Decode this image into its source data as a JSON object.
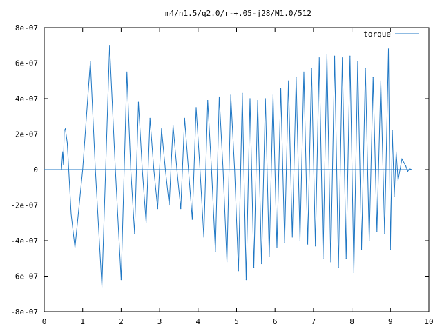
{
  "chart_data": {
    "type": "line",
    "title": "m4/n1.5/q2.0/r-+.05-j28/M1.0/512",
    "xlabel": "",
    "ylabel": "",
    "xlim": [
      0,
      10
    ],
    "ylim": [
      -8e-07,
      8e-07
    ],
    "grid": false,
    "legend_position": "top-right",
    "x_ticks": [
      {
        "value": 0,
        "label": "0"
      },
      {
        "value": 1,
        "label": "1"
      },
      {
        "value": 2,
        "label": "2"
      },
      {
        "value": 3,
        "label": "3"
      },
      {
        "value": 4,
        "label": "4"
      },
      {
        "value": 5,
        "label": "5"
      },
      {
        "value": 6,
        "label": "6"
      },
      {
        "value": 7,
        "label": "7"
      },
      {
        "value": 8,
        "label": "8"
      },
      {
        "value": 9,
        "label": "9"
      },
      {
        "value": 10,
        "label": "10"
      }
    ],
    "y_ticks": [
      {
        "value": 8e-07,
        "label": "8e-07"
      },
      {
        "value": 6e-07,
        "label": "6e-07"
      },
      {
        "value": 4e-07,
        "label": "4e-07"
      },
      {
        "value": 2e-07,
        "label": "2e-07"
      },
      {
        "value": 0,
        "label": "0"
      },
      {
        "value": -2e-07,
        "label": "-2e-07"
      },
      {
        "value": -4e-07,
        "label": "-4e-07"
      },
      {
        "value": -6e-07,
        "label": "-6e-07"
      },
      {
        "value": -8e-07,
        "label": "-8e-07"
      }
    ],
    "series": [
      {
        "name": "torque",
        "color": "#1f77c4",
        "x": [
          0.0,
          0.45,
          0.48,
          0.5,
          0.52,
          0.55,
          0.6,
          0.7,
          0.8,
          1.0,
          1.2,
          1.33,
          1.5,
          1.7,
          1.85,
          2.0,
          2.15,
          2.25,
          2.35,
          2.45,
          2.55,
          2.65,
          2.75,
          2.85,
          2.95,
          3.05,
          3.15,
          3.25,
          3.35,
          3.45,
          3.55,
          3.65,
          3.75,
          3.85,
          3.95,
          4.05,
          4.15,
          4.25,
          4.35,
          4.45,
          4.55,
          4.65,
          4.75,
          4.85,
          4.95,
          5.05,
          5.15,
          5.25,
          5.35,
          5.45,
          5.55,
          5.65,
          5.75,
          5.85,
          5.95,
          6.05,
          6.15,
          6.25,
          6.35,
          6.45,
          6.55,
          6.65,
          6.75,
          6.85,
          6.95,
          7.05,
          7.15,
          7.25,
          7.35,
          7.45,
          7.55,
          7.65,
          7.75,
          7.85,
          7.95,
          8.05,
          8.15,
          8.25,
          8.35,
          8.45,
          8.55,
          8.65,
          8.75,
          8.85,
          8.95,
          9.0,
          9.05,
          9.1,
          9.15,
          9.2,
          9.3,
          9.4,
          9.45,
          9.5,
          9.55
        ],
        "y": [
          0,
          0,
          1e-07,
          3e-08,
          2.2e-07,
          2.3e-07,
          1.5e-07,
          -2.5e-07,
          -4.4e-07,
          0,
          6.1e-07,
          0,
          -6.6e-07,
          7e-07,
          0,
          -6.2e-07,
          5.5e-07,
          0,
          -3.6e-07,
          3.8e-07,
          0,
          -3e-07,
          2.9e-07,
          0,
          -2.2e-07,
          2.3e-07,
          0,
          -2e-07,
          2.5e-07,
          0,
          -2.2e-07,
          2.9e-07,
          0,
          -2.8e-07,
          3.5e-07,
          0,
          -3.8e-07,
          3.9e-07,
          0,
          -4.6e-07,
          4.1e-07,
          0,
          -5.2e-07,
          4.2e-07,
          0,
          -5.7e-07,
          4.3e-07,
          -6.2e-07,
          4e-07,
          -5.5e-07,
          3.9e-07,
          -5.3e-07,
          4e-07,
          -4.9e-07,
          4.2e-07,
          -4.4e-07,
          4.6e-07,
          -4.1e-07,
          5e-07,
          -3.8e-07,
          5.2e-07,
          -4e-07,
          5.5e-07,
          -4.2e-07,
          5.7e-07,
          -4.3e-07,
          6.3e-07,
          -5e-07,
          6.5e-07,
          -5.2e-07,
          6.4e-07,
          -5.5e-07,
          6.3e-07,
          -5e-07,
          6.4e-07,
          -5.8e-07,
          6.1e-07,
          -4.5e-07,
          5.7e-07,
          -4e-07,
          5.2e-07,
          -3.5e-07,
          5e-07,
          -3.6e-07,
          6.8e-07,
          -4.5e-07,
          2.2e-07,
          -1.5e-07,
          1e-07,
          -6e-08,
          6e-08,
          2e-08,
          -1e-08,
          5e-09,
          0
        ]
      }
    ]
  }
}
